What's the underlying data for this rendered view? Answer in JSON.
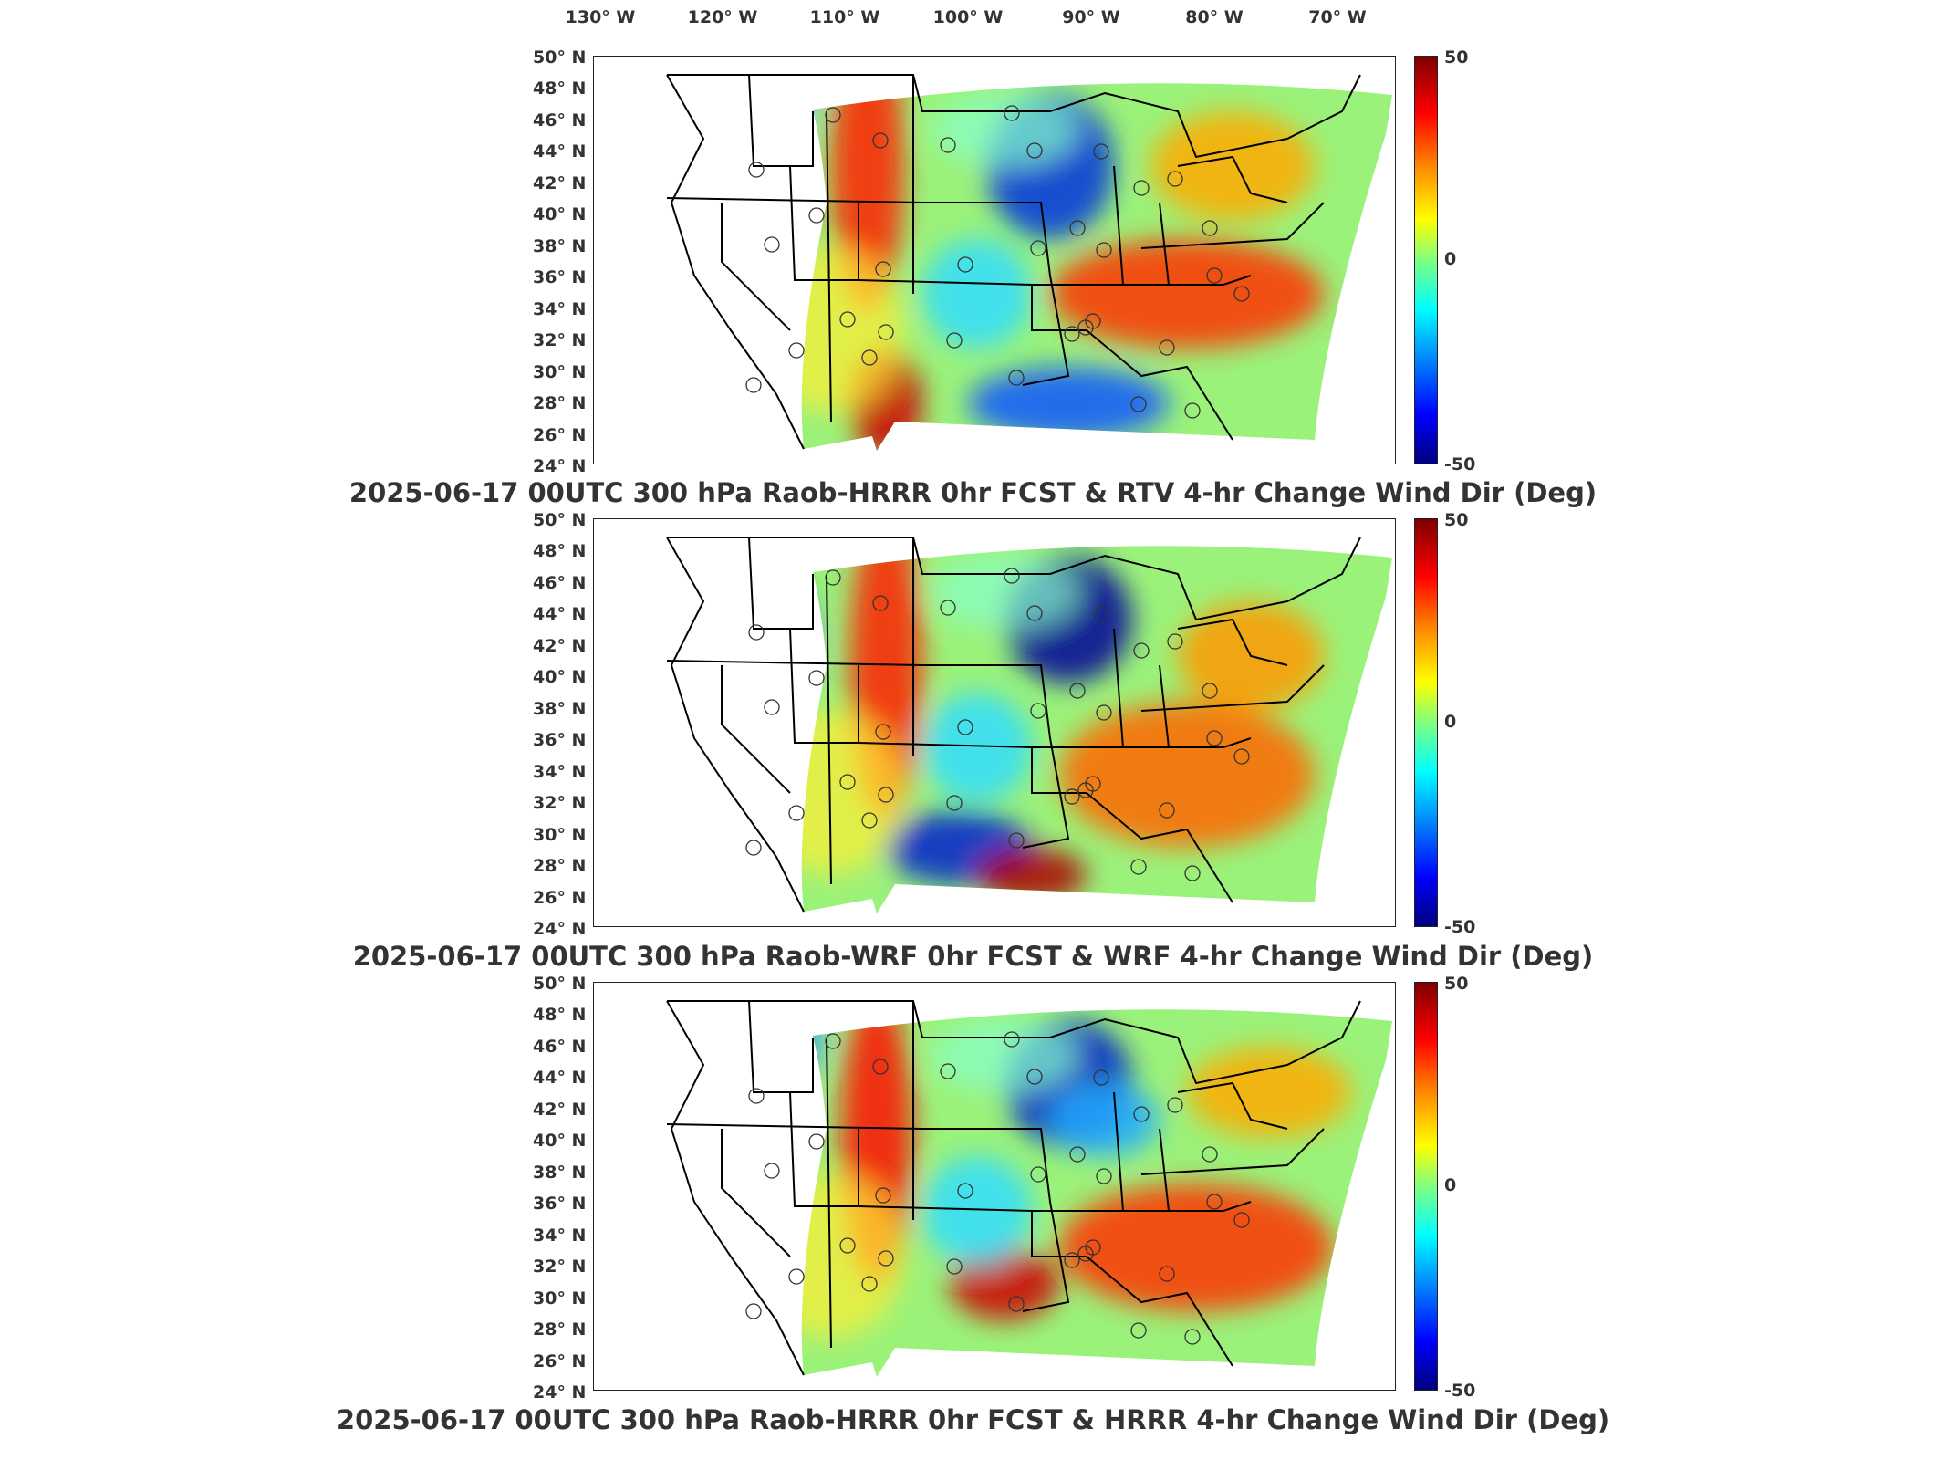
{
  "lon_labels": [
    "130° W",
    "120° W",
    "110° W",
    "100° W",
    "90° W",
    "80° W",
    "70° W"
  ],
  "lat_labels": [
    "50° N",
    "48° N",
    "46° N",
    "44° N",
    "42° N",
    "40° N",
    "38° N",
    "36° N",
    "34° N",
    "32° N",
    "30° N",
    "28° N",
    "26° N",
    "24° N"
  ],
  "colorbar": {
    "max": "50",
    "mid": "0",
    "min": "-50"
  },
  "panels": [
    {
      "title": "2025-06-17 00UTC 300 hPa Raob-HRRR 0hr FCST & RTV 4-hr Change Wind Dir (Deg)"
    },
    {
      "title": "2025-06-17 00UTC 300 hPa Raob-WRF 0hr FCST & WRF 4-hr Change Wind Dir (Deg)"
    },
    {
      "title": "2025-06-17 00UTC 300 hPa Raob-HRRR 0hr FCST & HRRR 4-hr Change Wind Dir (Deg)"
    }
  ],
  "colors": {
    "high": "#7f0000",
    "mid": "#7fff7f",
    "low": "#00007f"
  }
}
